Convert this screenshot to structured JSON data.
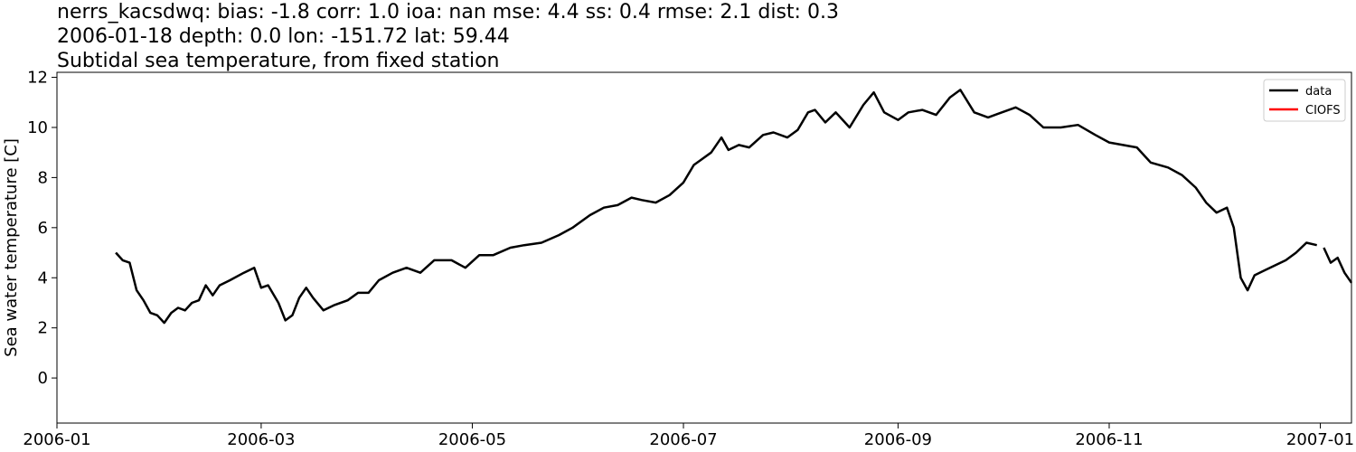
{
  "titles": {
    "line1": "nerrs_kacsdwq: bias: -1.8  corr: 1.0  ioa: nan  mse: 4.4  ss: 0.4  rmse: 2.1  dist: 0.3",
    "line2": "2006-01-18 depth: 0.0 lon: -151.72 lat: 59.44",
    "line3": "Subtidal sea temperature, from fixed station"
  },
  "chart_data": {
    "type": "line",
    "ylabel": "Sea water temperature [C]",
    "xlabel": "",
    "xlim": [
      "2006-01-01",
      "2007-01-10"
    ],
    "ylim": [
      -1.8,
      12.2
    ],
    "x_ticks": [
      "2006-01",
      "2006-03",
      "2006-05",
      "2006-07",
      "2006-09",
      "2006-11",
      "2007-01"
    ],
    "y_ticks": [
      0,
      2,
      4,
      6,
      8,
      10,
      12
    ],
    "grid": false,
    "legend": "top-right",
    "series": [
      {
        "name": "data",
        "color": "#000000",
        "segments": [
          [
            [
              "2006-01-18",
              5.0
            ],
            [
              "2006-01-20",
              4.7
            ],
            [
              "2006-01-22",
              4.6
            ],
            [
              "2006-01-24",
              3.5
            ],
            [
              "2006-01-26",
              3.1
            ],
            [
              "2006-01-28",
              2.6
            ],
            [
              "2006-01-30",
              2.5
            ],
            [
              "2006-02-01",
              2.2
            ],
            [
              "2006-02-03",
              2.6
            ],
            [
              "2006-02-05",
              2.8
            ],
            [
              "2006-02-07",
              2.7
            ],
            [
              "2006-02-09",
              3.0
            ],
            [
              "2006-02-11",
              3.1
            ],
            [
              "2006-02-13",
              3.7
            ],
            [
              "2006-02-15",
              3.3
            ],
            [
              "2006-02-17",
              3.7
            ],
            [
              "2006-02-20",
              3.9
            ],
            [
              "2006-02-24",
              4.2
            ],
            [
              "2006-02-27",
              4.4
            ],
            [
              "2006-03-01",
              3.6
            ],
            [
              "2006-03-03",
              3.7
            ],
            [
              "2006-03-06",
              3.0
            ],
            [
              "2006-03-08",
              2.3
            ],
            [
              "2006-03-10",
              2.5
            ],
            [
              "2006-03-12",
              3.2
            ],
            [
              "2006-03-14",
              3.6
            ],
            [
              "2006-03-16",
              3.2
            ],
            [
              "2006-03-19",
              2.7
            ],
            [
              "2006-03-22",
              2.9
            ],
            [
              "2006-03-26",
              3.1
            ],
            [
              "2006-03-29",
              3.4
            ],
            [
              "2006-04-01",
              3.4
            ],
            [
              "2006-04-04",
              3.9
            ],
            [
              "2006-04-08",
              4.2
            ],
            [
              "2006-04-12",
              4.4
            ],
            [
              "2006-04-16",
              4.2
            ],
            [
              "2006-04-20",
              4.7
            ],
            [
              "2006-04-25",
              4.7
            ],
            [
              "2006-04-29",
              4.4
            ],
            [
              "2006-05-03",
              4.9
            ],
            [
              "2006-05-07",
              4.9
            ],
            [
              "2006-05-12",
              5.2
            ],
            [
              "2006-05-16",
              5.3
            ],
            [
              "2006-05-21",
              5.4
            ],
            [
              "2006-05-26",
              5.7
            ],
            [
              "2006-05-30",
              6.0
            ],
            [
              "2006-06-04",
              6.5
            ],
            [
              "2006-06-08",
              6.8
            ],
            [
              "2006-06-12",
              6.9
            ],
            [
              "2006-06-16",
              7.2
            ],
            [
              "2006-06-19",
              7.1
            ],
            [
              "2006-06-23",
              7.0
            ],
            [
              "2006-06-27",
              7.3
            ],
            [
              "2006-07-01",
              7.8
            ],
            [
              "2006-07-04",
              8.5
            ],
            [
              "2006-07-06",
              8.7
            ],
            [
              "2006-07-09",
              9.0
            ],
            [
              "2006-07-12",
              9.6
            ],
            [
              "2006-07-14",
              9.1
            ],
            [
              "2006-07-17",
              9.3
            ],
            [
              "2006-07-20",
              9.2
            ],
            [
              "2006-07-24",
              9.7
            ],
            [
              "2006-07-27",
              9.8
            ],
            [
              "2006-07-31",
              9.6
            ],
            [
              "2006-08-03",
              9.9
            ],
            [
              "2006-08-06",
              10.6
            ],
            [
              "2006-08-08",
              10.7
            ],
            [
              "2006-08-11",
              10.2
            ],
            [
              "2006-08-14",
              10.6
            ],
            [
              "2006-08-18",
              10.0
            ],
            [
              "2006-08-22",
              10.9
            ],
            [
              "2006-08-25",
              11.4
            ],
            [
              "2006-08-28",
              10.6
            ],
            [
              "2006-09-01",
              10.3
            ],
            [
              "2006-09-04",
              10.6
            ],
            [
              "2006-09-08",
              10.7
            ],
            [
              "2006-09-12",
              10.5
            ],
            [
              "2006-09-16",
              11.2
            ],
            [
              "2006-09-19",
              11.5
            ],
            [
              "2006-09-23",
              10.6
            ],
            [
              "2006-09-27",
              10.4
            ],
            [
              "2006-10-01",
              10.6
            ],
            [
              "2006-10-05",
              10.8
            ],
            [
              "2006-10-09",
              10.5
            ],
            [
              "2006-10-13",
              10.0
            ],
            [
              "2006-10-18",
              10.0
            ],
            [
              "2006-10-23",
              10.1
            ],
            [
              "2006-10-28",
              9.7
            ],
            [
              "2006-11-01",
              9.4
            ],
            [
              "2006-11-05",
              9.3
            ],
            [
              "2006-11-09",
              9.2
            ],
            [
              "2006-11-13",
              8.6
            ],
            [
              "2006-11-18",
              8.4
            ],
            [
              "2006-11-22",
              8.1
            ],
            [
              "2006-11-26",
              7.6
            ],
            [
              "2006-11-29",
              7.0
            ],
            [
              "2006-12-02",
              6.6
            ],
            [
              "2006-12-05",
              6.8
            ],
            [
              "2006-12-07",
              6.0
            ],
            [
              "2006-12-09",
              4.0
            ],
            [
              "2006-12-11",
              3.5
            ],
            [
              "2006-12-13",
              4.1
            ],
            [
              "2006-12-16",
              4.3
            ],
            [
              "2006-12-19",
              4.5
            ],
            [
              "2006-12-22",
              4.7
            ],
            [
              "2006-12-25",
              5.0
            ],
            [
              "2006-12-28",
              5.4
            ],
            [
              "2006-12-31",
              5.3
            ],
            [
              "2006-12-31",
              5.3
            ]
          ],
          [
            [
              "2007-01-02",
              5.2
            ],
            [
              "2007-01-04",
              4.6
            ],
            [
              "2007-01-06",
              4.8
            ],
            [
              "2007-01-08",
              4.2
            ],
            [
              "2007-01-10",
              3.8
            ]
          ]
        ]
      },
      {
        "name": "CIOFS",
        "color": "#ff0000",
        "segments": []
      }
    ]
  },
  "legend": {
    "label_data": "data",
    "label_model": "CIOFS"
  }
}
